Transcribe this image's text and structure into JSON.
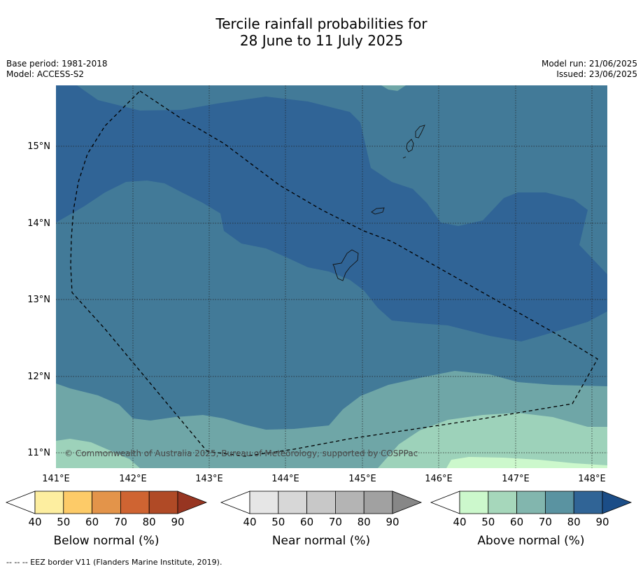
{
  "title_line1": "Tercile rainfall probabilities for",
  "title_line2": "28 June to 11 July 2025",
  "meta": {
    "base_period": "Base period: 1981-2018",
    "model": "Model: ACCESS-S2",
    "model_run": "Model run: 21/06/2025",
    "issued": "Issued: 23/06/2025"
  },
  "copyright": "© Commonwealth of Australia 2025, Bureau of Meteorology, supported by COSPPac",
  "lat_labels": [
    "15°N",
    "14°N",
    "13°N",
    "12°N",
    "11°N"
  ],
  "lon_labels": [
    "141°E",
    "142°E",
    "143°E",
    "144°E",
    "145°E",
    "146°E",
    "147°E",
    "148°E"
  ],
  "colorbars": [
    {
      "label": "Below normal (%)",
      "ticks": [
        "40",
        "50",
        "60",
        "70",
        "80",
        "90"
      ],
      "colors": [
        "#ffffff",
        "#fdeea0",
        "#fdcb68",
        "#e3944a",
        "#cf6432",
        "#b04a26",
        "#973521"
      ]
    },
    {
      "label": "Near normal (%)",
      "ticks": [
        "40",
        "50",
        "60",
        "70",
        "80",
        "90"
      ],
      "colors": [
        "#ffffff",
        "#e6e6e6",
        "#d7d7d7",
        "#c8c8c8",
        "#b4b4b4",
        "#a1a1a1",
        "#878787"
      ]
    },
    {
      "label": "Above normal (%)",
      "ticks": [
        "40",
        "50",
        "60",
        "70",
        "80",
        "90"
      ],
      "colors": [
        "#ffffff",
        "#ccf8cc",
        "#a6d7bb",
        "#82b6ae",
        "#5a93a1",
        "#306496",
        "#1b4d87"
      ]
    }
  ],
  "footer": "--  --  -- EEZ border V11 (Flanders Marine Institute, 2019)."
}
